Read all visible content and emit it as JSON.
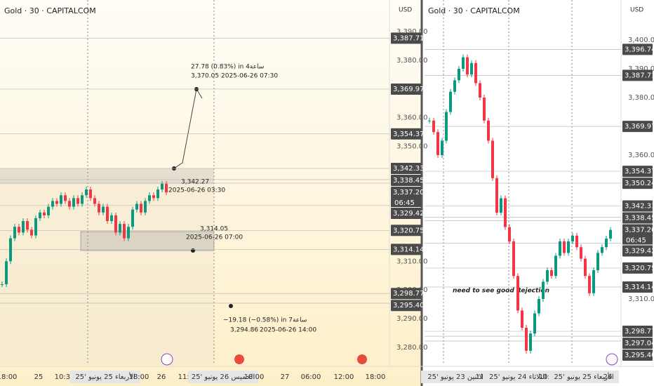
{
  "left": {
    "title": "Gold · 30 · CAPITALCOM",
    "currency": "USD",
    "yticks": [
      {
        "value": 3390,
        "label": "3,390.00"
      },
      {
        "value": 3380,
        "label": "3,380.00"
      },
      {
        "value": 3360,
        "label": "3,360.00"
      },
      {
        "value": 3350,
        "label": "3,350.00"
      },
      {
        "value": 3310,
        "label": "3,310.00"
      },
      {
        "value": 3300,
        "label": "3,300.00"
      },
      {
        "value": 3290,
        "label": "3,290.00"
      },
      {
        "value": 3280,
        "label": "3,280.00"
      }
    ],
    "price_tags": [
      {
        "value": 3387.71,
        "label": "3,387.71"
      },
      {
        "value": 3369.97,
        "label": "3,369.97"
      },
      {
        "value": 3354.37,
        "label": "3,354.37"
      },
      {
        "value": 3342.33,
        "label": "3,342.33"
      },
      {
        "value": 3338.45,
        "label": "3,338.45"
      },
      {
        "value": 3337.2,
        "label": "3,337.20"
      },
      {
        "value": 3329.42,
        "label": "3,329.42"
      },
      {
        "value": 3320.75,
        "label": "3,320.75"
      },
      {
        "value": 3314.14,
        "label": "3,314.14"
      },
      {
        "value": 3298.77,
        "label": "3,298.77"
      },
      {
        "value": 3295.4,
        "label": "3,295.40"
      }
    ],
    "countdown": "06:45",
    "time_labels": [
      "18:00",
      "25",
      "10:30",
      "الأربعاء 25 يونيو '25",
      "18:00",
      "26",
      "11:00",
      "الخميس 26 يونيو '25",
      "18:00",
      "27",
      "06:00",
      "12:00",
      "18:00"
    ],
    "annotations": [
      "27.78 (0.83%) in 4ساعة",
      "3,370.05",
      "2025-06-26  07:30",
      "3,342.27",
      "2025-06-26 03:30",
      "3,314.05",
      "2025-06-26 07:00",
      "−19.18 (−0.58%) in 7ساعة",
      "3,294.86",
      "2025-06-26  14:00"
    ],
    "closes": [
      3302,
      3310,
      3318,
      3322,
      3320,
      3324,
      3321,
      3319,
      3325,
      3327,
      3326,
      3329,
      3331,
      3330,
      3333,
      3331,
      3329,
      3332,
      3330,
      3333,
      3335,
      3332,
      3330,
      3327,
      3329,
      3324,
      3326,
      3320,
      3323,
      3318,
      3322,
      3328,
      3330,
      3327,
      3331,
      3333,
      3332,
      3335,
      3337,
      3334
    ]
  },
  "right": {
    "title": "Gold · 30 · CAPITALCOM",
    "currency": "USD",
    "yticks": [
      {
        "value": 3400,
        "label": "3,400.00"
      },
      {
        "value": 3390,
        "label": "3,390.00"
      },
      {
        "value": 3380,
        "label": "3,380.00"
      },
      {
        "value": 3360,
        "label": "3,360.00"
      },
      {
        "value": 3310,
        "label": "3,310.00"
      }
    ],
    "price_tags": [
      {
        "value": 3396.74,
        "label": "3,396.74"
      },
      {
        "value": 3387.71,
        "label": "3,387.71"
      },
      {
        "value": 3369.97,
        "label": "3,369.97"
      },
      {
        "value": 3354.37,
        "label": "3,354.37"
      },
      {
        "value": 3350.24,
        "label": "3,350.24"
      },
      {
        "value": 3342.33,
        "label": "3,342.33"
      },
      {
        "value": 3338.45,
        "label": "3,338.45"
      },
      {
        "value": 3337.2,
        "label": "3,337.20"
      },
      {
        "value": 3329.42,
        "label": "3,329.42"
      },
      {
        "value": 3320.75,
        "label": "3,320.75"
      },
      {
        "value": 3314.14,
        "label": "3,314.14"
      },
      {
        "value": 3298.77,
        "label": "3,298.77"
      },
      {
        "value": 3297.04,
        "label": "3,297.04"
      },
      {
        "value": 3295.4,
        "label": "3,295.40"
      }
    ],
    "countdown": "06:45",
    "time_labels": [
      "الاثنين 23 يونيو '25",
      "11:00",
      "الثلاثاء 24 يونيو '25",
      "10:30",
      "الأربعاء 25 يونيو '25",
      "26"
    ],
    "annotations": [
      "need to see good Rejection"
    ],
    "closes": [
      3372,
      3368,
      3360,
      3365,
      3375,
      3382,
      3386,
      3390,
      3394,
      3388,
      3392,
      3385,
      3380,
      3372,
      3365,
      3352,
      3340,
      3345,
      3335,
      3330,
      3318,
      3306,
      3300,
      3292,
      3298,
      3305,
      3310,
      3316,
      3320,
      3318,
      3325,
      3330,
      3326,
      3330,
      3332,
      3328,
      3324,
      3318,
      3312,
      3320,
      3326,
      3328,
      3331,
      3334
    ]
  }
}
